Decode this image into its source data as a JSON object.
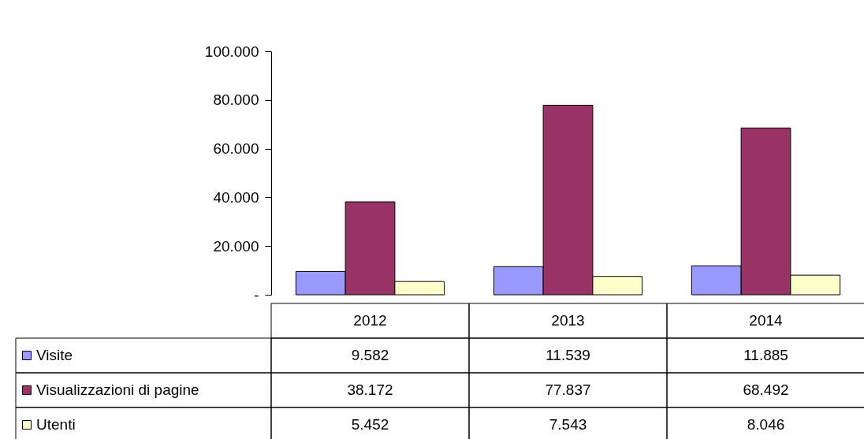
{
  "chart_data": {
    "type": "bar",
    "categories": [
      "2012",
      "2013",
      "2014"
    ],
    "series": [
      {
        "name": "Visite",
        "color": "#9999ff",
        "values": [
          9582,
          11539,
          11885
        ],
        "value_labels": [
          "9.582",
          "11.539",
          "11.885"
        ]
      },
      {
        "name": "Visualizzazioni di pagine",
        "color": "#993366",
        "values": [
          38172,
          77837,
          68492
        ],
        "value_labels": [
          "38.172",
          "77.837",
          "68.492"
        ]
      },
      {
        "name": "Utenti",
        "color": "#ffffcc",
        "values": [
          5452,
          7543,
          8046
        ],
        "value_labels": [
          "5.452",
          "7.543",
          "8.046"
        ]
      }
    ],
    "ylim": [
      0,
      100000
    ],
    "yticks": [
      {
        "value": 0,
        "label": "-"
      },
      {
        "value": 20000,
        "label": "20.000"
      },
      {
        "value": 40000,
        "label": "40.000"
      },
      {
        "value": 60000,
        "label": "60.000"
      },
      {
        "value": 80000,
        "label": "80.000"
      },
      {
        "value": 100000,
        "label": "100.000"
      }
    ],
    "legend": "bottom left"
  }
}
